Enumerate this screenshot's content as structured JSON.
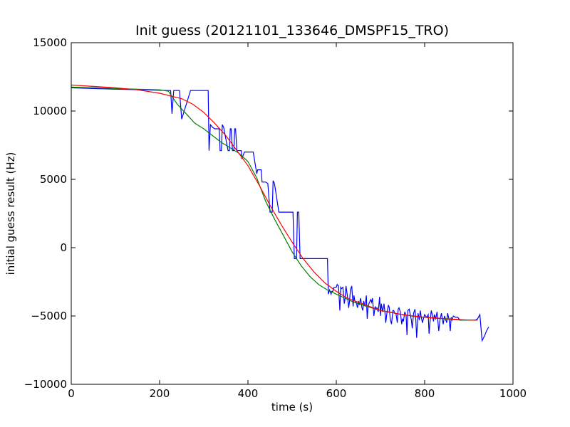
{
  "chart_data": {
    "type": "line",
    "title": "Init guess (20121101_133646_DMSPF15_TRO)",
    "xlabel": "time (s)",
    "ylabel": "initial guess result (Hz)",
    "xlim": [
      0,
      1000
    ],
    "ylim": [
      -10000,
      15000
    ],
    "xticks": [
      0,
      200,
      400,
      600,
      800,
      1000
    ],
    "yticks": [
      -10000,
      -5000,
      0,
      5000,
      10000,
      15000
    ],
    "xtick_labels": [
      "0",
      "200",
      "400",
      "600",
      "800",
      "1000"
    ],
    "ytick_labels": [
      "−10000",
      "−5000",
      "0",
      "5000",
      "10000",
      "15000"
    ],
    "grid": false,
    "series": [
      {
        "color": "#0000ff",
        "x": [
          0,
          100,
          220,
          225,
          228,
          232,
          240,
          242,
          245,
          250,
          270,
          290,
          292,
          293,
          305,
          310,
          312,
          315,
          320,
          325,
          327,
          330,
          335,
          337,
          340,
          342,
          345,
          355,
          358,
          360,
          362,
          365,
          368,
          370,
          372,
          375,
          380,
          383,
          385,
          386,
          392,
          395,
          398,
          400,
          410,
          412,
          420,
          422,
          430,
          432,
          440,
          445,
          450,
          455,
          457,
          460,
          470,
          480,
          485,
          490,
          500,
          502,
          505,
          510,
          512,
          515,
          518,
          520,
          522,
          525,
          530,
          540,
          560,
          580,
          582,
          585,
          588,
          590,
          592,
          595,
          598,
          600,
          602,
          605,
          608,
          610,
          612,
          615,
          618,
          620,
          622,
          625,
          628,
          630,
          632,
          635,
          638,
          640,
          642,
          645,
          648,
          650,
          652,
          655,
          658,
          660,
          662,
          665,
          668,
          670,
          672,
          675,
          678,
          680,
          682,
          685,
          688,
          690,
          692,
          695,
          698,
          700,
          702,
          705,
          708,
          710,
          712,
          715,
          718,
          720,
          722,
          725,
          728,
          730,
          732,
          735,
          738,
          740,
          742,
          745,
          748,
          750,
          752,
          755,
          758,
          760,
          762,
          765,
          768,
          770,
          772,
          775,
          778,
          780,
          782,
          785,
          788,
          790,
          792,
          795,
          798,
          800,
          802,
          805,
          808,
          810,
          812,
          815,
          818,
          820,
          822,
          825,
          828,
          830,
          832,
          835,
          838,
          840,
          842,
          845,
          848,
          850,
          852,
          855,
          858,
          860,
          862,
          865,
          870,
          875,
          880,
          885,
          890,
          895,
          900,
          905,
          910,
          915,
          920,
          925,
          930,
          935,
          940,
          945
        ],
        "y": [
          11700,
          11600,
          11500,
          11500,
          9800,
          11500,
          11500,
          11500,
          11500,
          9400,
          11500,
          11500,
          11500,
          11500,
          11500,
          11500,
          7100,
          9000,
          8800,
          8700,
          8700,
          8700,
          8700,
          7100,
          7100,
          9000,
          8800,
          7100,
          7100,
          8700,
          8700,
          7100,
          7100,
          8700,
          8700,
          7100,
          7100,
          7100,
          7100,
          6500,
          7000,
          7000,
          7000,
          7000,
          7000,
          7000,
          5400,
          5700,
          5700,
          4800,
          4800,
          4700,
          2600,
          2600,
          4900,
          4700,
          2600,
          2600,
          2600,
          2600,
          2600,
          2600,
          -800,
          -800,
          2600,
          2600,
          -800,
          -800,
          -800,
          -800,
          -800,
          -800,
          -800,
          -800,
          -3400,
          -3100,
          -3400,
          -3200,
          -3200,
          -2900,
          -2900,
          -2900,
          -2700,
          -2800,
          -4600,
          -2900,
          -3000,
          -2900,
          -4100,
          -3700,
          -2800,
          -3500,
          -4400,
          -3900,
          -3100,
          -2800,
          -4300,
          -3500,
          -3900,
          -4000,
          -4400,
          -3900,
          -4200,
          -3700,
          -4400,
          -4600,
          -3900,
          -4300,
          -3500,
          -5200,
          -4300,
          -4000,
          -3800,
          -4000,
          -3700,
          -5000,
          -4300,
          -4500,
          -4400,
          -4700,
          -3600,
          -5000,
          -4100,
          -4700,
          -4100,
          -4700,
          -5500,
          -4700,
          -4200,
          -4400,
          -5200,
          -5600,
          -4600,
          -4600,
          -4800,
          -4800,
          -5500,
          -4500,
          -4400,
          -4700,
          -5600,
          -5200,
          -5400,
          -4700,
          -5000,
          -6400,
          -4600,
          -4500,
          -5000,
          -5300,
          -5900,
          -4800,
          -4500,
          -5300,
          -6600,
          -4800,
          -5300,
          -4600,
          -5000,
          -5500,
          -5100,
          -4900,
          -5000,
          -5100,
          -4900,
          -6300,
          -5500,
          -4600,
          -5000,
          -5400,
          -4900,
          -5200,
          -4700,
          -5400,
          -6100,
          -5200,
          -4800,
          -5200,
          -5600,
          -5000,
          -5300,
          -5500,
          -4800,
          -5200,
          -6100,
          -5100,
          -5300,
          -5000,
          -5100,
          -5100,
          -5300,
          -5300,
          -5300,
          -5300,
          -5300,
          -5300,
          -5300,
          -5300,
          -5200,
          -4900,
          -6800,
          -6500,
          -6100,
          -5800
        ]
      },
      {
        "color": "#008000",
        "x": [
          0,
          50,
          100,
          150,
          200,
          220,
          240,
          260,
          280,
          300,
          320,
          340,
          360,
          380,
          400,
          420,
          440,
          460,
          480,
          500,
          520,
          540,
          560,
          580,
          600,
          620,
          640,
          660,
          680,
          700,
          720,
          740,
          760,
          780,
          800,
          820,
          840,
          860,
          880,
          900,
          920
        ],
        "y": [
          11750,
          11700,
          11650,
          11600,
          11550,
          11450,
          10500,
          9800,
          9100,
          8700,
          8200,
          7700,
          7300,
          6900,
          6300,
          5100,
          3400,
          2100,
          900,
          -300,
          -1300,
          -2100,
          -2700,
          -3100,
          -3400,
          -3700,
          -4000,
          -4200,
          -4400,
          -4600,
          -4700,
          -4850,
          -4950,
          -5050,
          -5100,
          -5150,
          -5200,
          -5250,
          -5300,
          -5300,
          -5300
        ]
      },
      {
        "color": "#ff0000",
        "x": [
          0,
          50,
          100,
          150,
          200,
          250,
          275,
          300,
          325,
          350,
          375,
          400,
          425,
          450,
          475,
          500,
          525,
          550,
          575,
          600,
          625,
          650,
          675,
          700,
          750,
          800,
          850,
          900,
          920
        ],
        "y": [
          11900,
          11800,
          11700,
          11550,
          11300,
          10900,
          10500,
          9900,
          9100,
          8200,
          7100,
          6000,
          4600,
          3100,
          1700,
          400,
          -800,
          -1800,
          -2600,
          -3200,
          -3700,
          -4000,
          -4300,
          -4600,
          -4900,
          -5100,
          -5200,
          -5300,
          -5300
        ]
      }
    ]
  }
}
